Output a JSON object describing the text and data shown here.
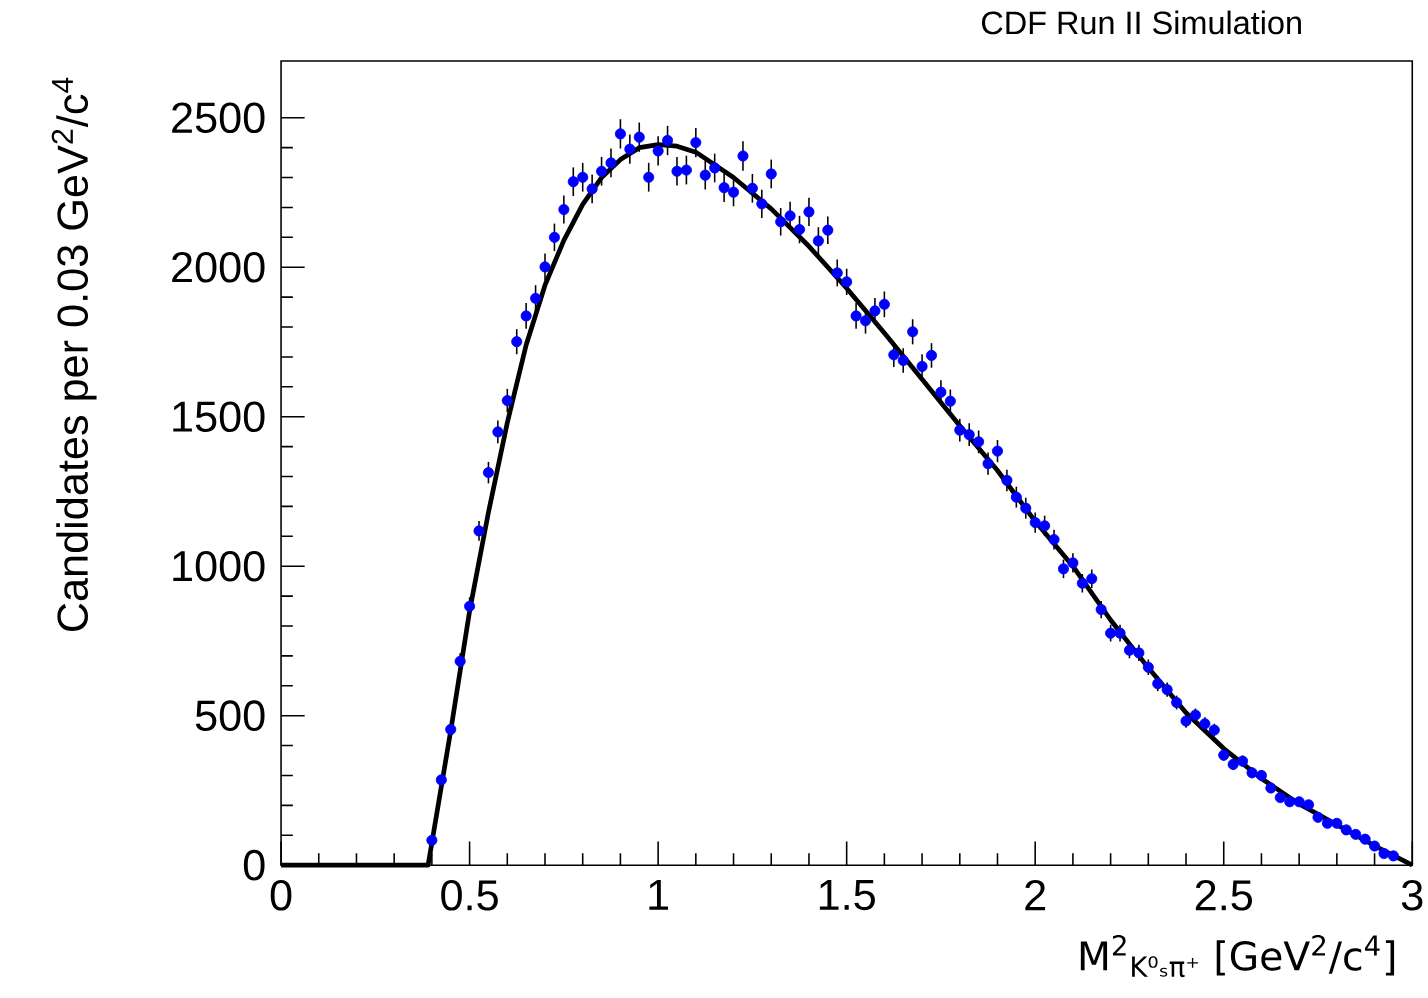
{
  "chart_data": {
    "type": "scatter",
    "title": "CDF Run II Simulation",
    "xlabel": "M$^{2}$$_{K⁰ₛπ⁺}$ [GeV$^{2}$/c$^{4}$]",
    "ylabel": "Candidates per 0.03 GeV$^{2}$/c$^{4}$",
    "xlim": [
      0,
      3
    ],
    "ylim": [
      0,
      2690
    ],
    "xticks": [
      0,
      0.5,
      1,
      1.5,
      2,
      2.5,
      3
    ],
    "yticks": [
      0,
      500,
      1000,
      1500,
      2000,
      2500
    ],
    "marker": "circle",
    "series": [
      {
        "color": "#0000ff",
        "x": [
          0.4,
          0.425,
          0.45,
          0.475,
          0.5,
          0.525,
          0.55,
          0.575,
          0.6,
          0.625,
          0.65,
          0.675,
          0.7,
          0.725,
          0.75,
          0.775,
          0.8,
          0.825,
          0.85,
          0.875,
          0.9,
          0.925,
          0.95,
          0.975,
          1.0,
          1.025,
          1.05,
          1.075,
          1.1,
          1.125,
          1.15,
          1.175,
          1.2,
          1.225,
          1.25,
          1.275,
          1.3,
          1.325,
          1.35,
          1.375,
          1.4,
          1.425,
          1.45,
          1.475,
          1.5,
          1.525,
          1.55,
          1.575,
          1.6,
          1.625,
          1.65,
          1.675,
          1.7,
          1.725,
          1.75,
          1.775,
          1.8,
          1.825,
          1.85,
          1.875,
          1.9,
          1.925,
          1.95,
          1.975,
          2.0,
          2.025,
          2.05,
          2.075,
          2.1,
          2.125,
          2.15,
          2.175,
          2.2,
          2.225,
          2.25,
          2.275,
          2.3,
          2.325,
          2.35,
          2.375,
          2.4,
          2.425,
          2.45,
          2.475,
          2.5,
          2.525,
          2.55,
          2.575,
          2.6,
          2.625,
          2.65,
          2.675,
          2.7,
          2.725,
          2.75,
          2.775,
          2.8,
          2.825,
          2.85,
          2.875,
          2.9,
          2.925,
          2.95
        ],
        "values": [
          83,
          285,
          454,
          682,
          866,
          1118,
          1313,
          1449,
          1554,
          1751,
          1837,
          1896,
          2001,
          2100,
          2193,
          2286,
          2301,
          2262,
          2321,
          2349,
          2446,
          2395,
          2435,
          2301,
          2389,
          2424,
          2321,
          2325,
          2417,
          2308,
          2332,
          2266,
          2251,
          2372,
          2264,
          2212,
          2312,
          2152,
          2172,
          2126,
          2185,
          2088,
          2124,
          1981,
          1951,
          1837,
          1821,
          1854,
          1876,
          1707,
          1688,
          1784,
          1668,
          1705,
          1582,
          1552,
          1455,
          1440,
          1416,
          1343,
          1385,
          1287,
          1231,
          1194,
          1146,
          1135,
          1089,
          991,
          1011,
          943,
          958,
          855,
          776,
          776,
          719,
          710,
          662,
          607,
          587,
          544,
          482,
          502,
          473,
          452,
          368,
          337,
          348,
          309,
          300,
          258,
          226,
          212,
          212,
          202,
          160,
          140,
          140,
          118,
          103,
          87,
          64,
          39,
          31
        ],
        "errors": [
          10,
          17,
          22,
          27,
          30,
          33,
          36,
          38,
          39,
          42,
          43,
          44,
          45,
          46,
          47,
          48,
          48,
          48,
          48,
          48,
          49,
          49,
          49,
          48,
          49,
          49,
          48,
          48,
          49,
          48,
          48,
          48,
          47,
          49,
          48,
          47,
          48,
          46,
          47,
          46,
          47,
          46,
          46,
          45,
          44,
          43,
          43,
          43,
          43,
          41,
          41,
          42,
          41,
          41,
          40,
          39,
          38,
          38,
          38,
          37,
          37,
          36,
          35,
          35,
          34,
          34,
          33,
          31,
          32,
          31,
          31,
          29,
          28,
          28,
          27,
          27,
          26,
          25,
          24,
          23,
          22,
          22,
          22,
          21,
          19,
          18,
          19,
          18,
          17,
          16,
          15,
          15,
          15,
          14,
          13,
          12,
          12,
          11,
          10,
          9,
          8,
          6,
          6
        ]
      },
      {
        "type": "line",
        "color": "#000000",
        "marker": "none",
        "x": [
          0,
          0.39,
          0.45,
          0.5,
          0.55,
          0.6,
          0.65,
          0.7,
          0.75,
          0.8,
          0.85,
          0.9,
          0.95,
          1.0,
          1.05,
          1.1,
          1.2,
          1.3,
          1.4,
          1.5,
          1.6,
          1.7,
          1.8,
          1.9,
          2.0,
          2.1,
          2.2,
          2.3,
          2.4,
          2.5,
          2.6,
          2.7,
          2.8,
          2.9,
          3.0
        ],
        "values": [
          0,
          0,
          450,
          850,
          1180,
          1480,
          1740,
          1940,
          2090,
          2210,
          2300,
          2360,
          2400,
          2410,
          2405,
          2385,
          2300,
          2195,
          2070,
          1930,
          1780,
          1625,
          1470,
          1320,
          1150,
          1000,
          820,
          660,
          510,
          390,
          290,
          205,
          135,
          65,
          0
        ]
      }
    ]
  }
}
